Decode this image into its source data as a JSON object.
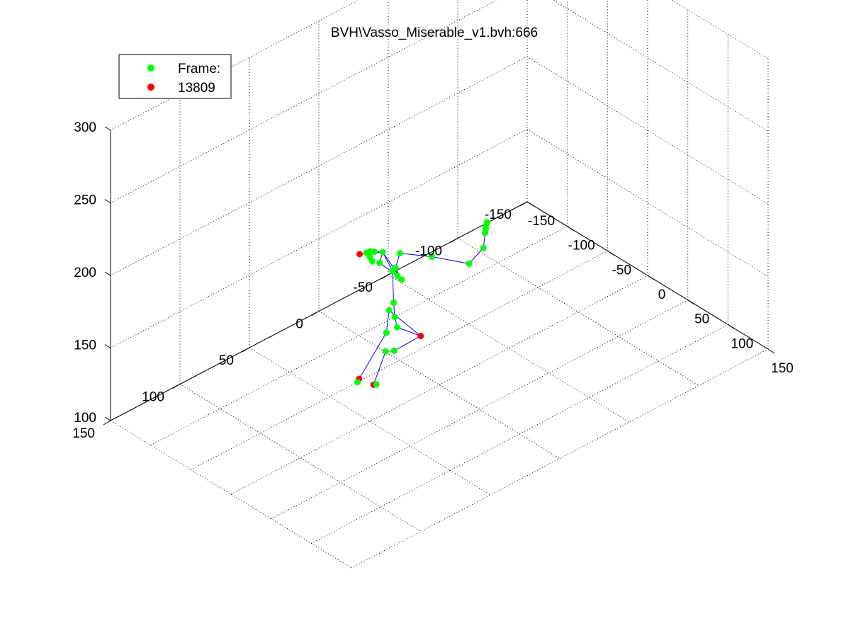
{
  "window": {},
  "chart_data": {
    "type": "scatter",
    "title": "BVH\\Vasso_Miserable_v1.bvh:666",
    "xlabel": "",
    "ylabel": "",
    "zlabel": "",
    "xlim": [
      -150,
      150
    ],
    "ylim": [
      -150,
      150
    ],
    "zlim": [
      100,
      300
    ],
    "x_ticks": [
      -150,
      -100,
      -50,
      0,
      50,
      100,
      150
    ],
    "y_ticks": [
      -150,
      -100,
      -50,
      0,
      50,
      100,
      150
    ],
    "z_ticks": [
      100,
      150,
      200,
      250,
      300
    ],
    "x_tick_labels": [
      "-150",
      "-100",
      "-50",
      "0",
      "50",
      "100",
      "150"
    ],
    "y_tick_labels": [
      "-150",
      "-100",
      "-50",
      "0",
      "50",
      "100",
      "150"
    ],
    "z_tick_labels": [
      "100",
      "150",
      "200",
      "250",
      "300"
    ],
    "grid": true,
    "legend": {
      "placement": "top-left",
      "entries": [
        {
          "label": "Frame:",
          "color": "#00ff00"
        },
        {
          "label": "13809",
          "color": "#ff0000"
        }
      ]
    },
    "colors": {
      "joint": "#00ff00",
      "end_site": "#ff0000",
      "bone": "#0000ff"
    },
    "joints": [
      {
        "id": "j0",
        "xyz": [
          20,
          25,
          153
        ],
        "kind": "end_site"
      },
      {
        "id": "j1",
        "xyz": [
          13,
          40,
          148
        ],
        "kind": "joint"
      },
      {
        "id": "j2",
        "xyz": [
          -28,
          20,
          152
        ],
        "kind": "joint"
      },
      {
        "id": "j3",
        "xyz": [
          -40,
          15,
          130
        ],
        "kind": "joint"
      },
      {
        "id": "j4",
        "xyz": [
          -48,
          30,
          103
        ],
        "kind": "end_site"
      },
      {
        "id": "j5",
        "xyz": [
          -50,
          30,
          100
        ],
        "kind": "joint"
      },
      {
        "id": "j6",
        "xyz": [
          -15,
          30,
          133
        ],
        "kind": "joint"
      },
      {
        "id": "j7",
        "xyz": [
          -30,
          30,
          105
        ],
        "kind": "end_site"
      },
      {
        "id": "j8",
        "xyz": [
          -35,
          25,
          101
        ],
        "kind": "joint"
      },
      {
        "id": "j9",
        "xyz": [
          8,
          35,
          160
        ],
        "kind": "joint"
      },
      {
        "id": "j10",
        "xyz": [
          5,
          35,
          166
        ],
        "kind": "joint"
      },
      {
        "id": "j11",
        "xyz": [
          -5,
          30,
          170
        ],
        "kind": "joint"
      },
      {
        "id": "j12",
        "xyz": [
          -15,
          25,
          186
        ],
        "kind": "joint"
      },
      {
        "id": "j13",
        "xyz": [
          -22,
          28,
          198
        ],
        "kind": "joint"
      },
      {
        "id": "j14",
        "xyz": [
          -30,
          40,
          200
        ],
        "kind": "end_site"
      },
      {
        "id": "j15",
        "xyz": [
          -29,
          30,
          197
        ],
        "kind": "joint"
      },
      {
        "id": "j16",
        "xyz": [
          -39,
          30,
          193
        ],
        "kind": "joint"
      },
      {
        "id": "j17",
        "xyz": [
          -33,
          24,
          185
        ],
        "kind": "joint"
      },
      {
        "id": "j18",
        "xyz": [
          -23,
          17,
          176
        ],
        "kind": "joint"
      },
      {
        "id": "j19",
        "xyz": [
          -21,
          15,
          173
        ],
        "kind": "joint"
      },
      {
        "id": "j20",
        "xyz": [
          -20,
          20,
          184
        ],
        "kind": "joint"
      },
      {
        "id": "j21",
        "xyz": [
          -11,
          22,
          198
        ],
        "kind": "joint"
      },
      {
        "id": "j22",
        "xyz": [
          8,
          10,
          196
        ],
        "kind": "joint"
      },
      {
        "id": "j23",
        "xyz": [
          37,
          0,
          196
        ],
        "kind": "joint"
      },
      {
        "id": "j24",
        "xyz": [
          55,
          0,
          213
        ],
        "kind": "joint"
      },
      {
        "id": "j25",
        "xyz": [
          57,
          0,
          224
        ],
        "kind": "joint"
      },
      {
        "id": "j26",
        "xyz": [
          58,
          0,
          227
        ],
        "kind": "joint"
      },
      {
        "id": "j27",
        "xyz": [
          56,
          -2,
          230
        ],
        "kind": "joint"
      },
      {
        "id": "j28",
        "xyz": [
          61,
          2,
          231
        ],
        "kind": "joint"
      },
      {
        "id": "j29",
        "xyz": [
          54,
          -3,
          228
        ],
        "kind": "joint"
      },
      {
        "id": "j30",
        "xyz": [
          -42,
          24,
          183
        ],
        "kind": "joint"
      },
      {
        "id": "j31",
        "xyz": [
          -45,
          24,
          185
        ],
        "kind": "joint"
      },
      {
        "id": "j32",
        "xyz": [
          -43,
          25,
          190
        ],
        "kind": "joint"
      }
    ],
    "bones": [
      [
        "j0",
        "j1"
      ],
      [
        "j0",
        "j2"
      ],
      [
        "j2",
        "j3"
      ],
      [
        "j3",
        "j4"
      ],
      [
        "j4",
        "j5"
      ],
      [
        "j1",
        "j6"
      ],
      [
        "j6",
        "j7"
      ],
      [
        "j7",
        "j8"
      ],
      [
        "j0",
        "j9"
      ],
      [
        "j9",
        "j10"
      ],
      [
        "j10",
        "j11"
      ],
      [
        "j11",
        "j12"
      ],
      [
        "j12",
        "j13"
      ],
      [
        "j13",
        "j14"
      ],
      [
        "j13",
        "j15"
      ],
      [
        "j15",
        "j16"
      ],
      [
        "j13",
        "j17"
      ],
      [
        "j17",
        "j18"
      ],
      [
        "j13",
        "j19"
      ],
      [
        "j19",
        "j20"
      ],
      [
        "j20",
        "j21"
      ],
      [
        "j21",
        "j22"
      ],
      [
        "j22",
        "j23"
      ],
      [
        "j23",
        "j24"
      ],
      [
        "j24",
        "j25"
      ],
      [
        "j25",
        "j26"
      ],
      [
        "j25",
        "j27"
      ],
      [
        "j25",
        "j28"
      ],
      [
        "j25",
        "j29"
      ],
      [
        "j16",
        "j30"
      ],
      [
        "j16",
        "j31"
      ],
      [
        "j16",
        "j32"
      ]
    ]
  }
}
